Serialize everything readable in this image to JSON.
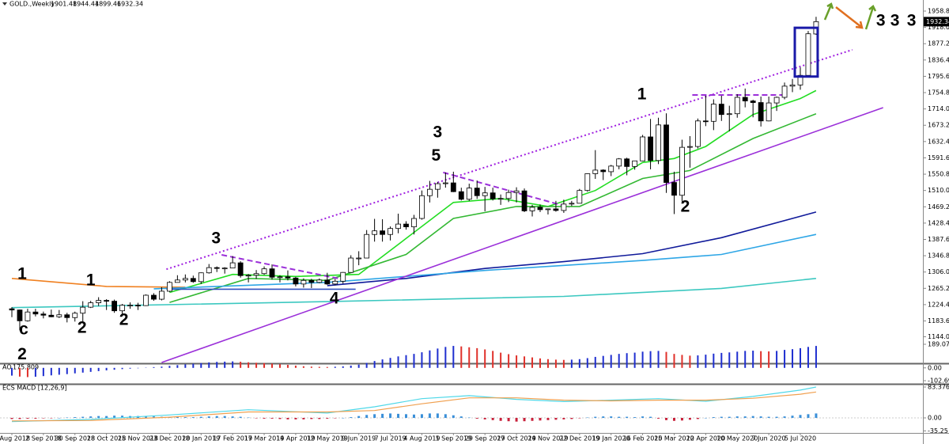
{
  "header": {
    "symbol": "GOLD.,Weekly"
  },
  "chart_data": [
    {
      "type": "candlestick",
      "categories": [
        "5 Aug 2018",
        null,
        null,
        null,
        "2 Sep 2018",
        null,
        null,
        null,
        "30 Sep 2018",
        null,
        null,
        null,
        "28 Oct 2018",
        null,
        null,
        null,
        "25 Nov 2018",
        null,
        null,
        null,
        "23 Dec 2018",
        null,
        null,
        null,
        "20 Jan 2019",
        null,
        null,
        null,
        "17 Feb 2019",
        null,
        null,
        null,
        "17 Mar 2019",
        null,
        null,
        null,
        "14 Apr 2019",
        null,
        null,
        null,
        "12 May 2019",
        null,
        null,
        null,
        "9 Jun 2019",
        null,
        null,
        null,
        "7 Jul 2019",
        null,
        null,
        null,
        "4 Aug 2019",
        null,
        null,
        null,
        "1 Sep 2019",
        null,
        null,
        null,
        "29 Sep 2019",
        null,
        null,
        null,
        "27 Oct 2019",
        null,
        null,
        null,
        "24 Nov 2019",
        null,
        null,
        null,
        "22 Dec 2019",
        null,
        null,
        null,
        "19 Jan 2020",
        null,
        null,
        null,
        "16 Feb 2020",
        null,
        null,
        null,
        "15 Mar 2020",
        null,
        null,
        null,
        "12 Apr 2020",
        null,
        null,
        null,
        "10 May 2020",
        null,
        null,
        null,
        "7 Jun 2020",
        null,
        null,
        null,
        "5 Jul 2020",
        null,
        null
      ],
      "open": [
        1214,
        1211,
        1184,
        1206,
        1201,
        1198,
        1194,
        1199,
        1192,
        1203,
        1218,
        1229,
        1235,
        1233,
        1209,
        1223,
        1223,
        1222,
        1248,
        1238,
        1258,
        1280,
        1286,
        1290,
        1282,
        1304,
        1317,
        1316,
        1316,
        1329,
        1297,
        1298,
        1302,
        1314,
        1293,
        1294,
        1291,
        1276,
        1285,
        1280,
        1286,
        1276,
        1283,
        1305,
        1341,
        1341,
        1400,
        1409,
        1400,
        1415,
        1426,
        1419,
        1440,
        1497,
        1513,
        1527,
        1529,
        1507,
        1488,
        1516,
        1497,
        1504,
        1489,
        1490,
        1505,
        1509,
        1459,
        1468,
        1462,
        1464,
        1460,
        1476,
        1478,
        1510,
        1552,
        1561,
        1557,
        1571,
        1589,
        1570,
        1584,
        1644,
        1585,
        1674,
        1530,
        1498,
        1618,
        1620,
        1684,
        1683,
        1726,
        1700,
        1702,
        1743,
        1734,
        1730,
        1684,
        1729,
        1743,
        1771,
        1774,
        1798,
        1901.48
      ],
      "high": [
        1218,
        1212,
        1214,
        1214,
        1207,
        1212,
        1211,
        1204,
        1207,
        1233,
        1234,
        1243,
        1238,
        1237,
        1226,
        1230,
        1229,
        1250,
        1253,
        1268,
        1283,
        1298,
        1300,
        1297,
        1305,
        1326,
        1320,
        1318,
        1346,
        1333,
        1301,
        1311,
        1320,
        1325,
        1298,
        1310,
        1294,
        1290,
        1289,
        1290,
        1304,
        1289,
        1306,
        1348,
        1358,
        1411,
        1439,
        1438,
        1420,
        1452,
        1433,
        1449,
        1510,
        1534,
        1531,
        1555,
        1557,
        1517,
        1527,
        1535,
        1519,
        1517,
        1500,
        1512,
        1518,
        1515,
        1474,
        1475,
        1465,
        1484,
        1487,
        1484,
        1514,
        1553,
        1611,
        1563,
        1574,
        1591,
        1592,
        1584,
        1649,
        1689,
        1692,
        1703,
        1557,
        1637,
        1646,
        1690,
        1747,
        1738,
        1747,
        1722,
        1751,
        1765,
        1737,
        1745,
        1745,
        1745,
        1780,
        1789,
        1818,
        1909,
        1944.44
      ],
      "low": [
        1193,
        1160,
        1182,
        1195,
        1190,
        1193,
        1191,
        1180,
        1182,
        1182,
        1216,
        1221,
        1211,
        1204,
        1196,
        1214,
        1211,
        1221,
        1234,
        1235,
        1256,
        1280,
        1280,
        1279,
        1276,
        1302,
        1306,
        1302,
        1316,
        1292,
        1280,
        1289,
        1299,
        1287,
        1280,
        1285,
        1270,
        1267,
        1266,
        1278,
        1274,
        1273,
        1277,
        1305,
        1323,
        1341,
        1382,
        1382,
        1385,
        1403,
        1412,
        1400,
        1437,
        1480,
        1492,
        1517,
        1506,
        1485,
        1484,
        1489,
        1458,
        1485,
        1474,
        1481,
        1480,
        1456,
        1445,
        1456,
        1450,
        1457,
        1454,
        1471,
        1478,
        1507,
        1539,
        1536,
        1546,
        1563,
        1548,
        1562,
        1584,
        1563,
        1576,
        1504,
        1451,
        1482,
        1567,
        1615,
        1671,
        1661,
        1684,
        1658,
        1692,
        1718,
        1693,
        1670,
        1683,
        1709,
        1738,
        1756,
        1762,
        1794,
        1899.46
      ],
      "close": [
        1211,
        1184,
        1206,
        1201,
        1198,
        1194,
        1199,
        1192,
        1203,
        1218,
        1229,
        1235,
        1233,
        1209,
        1223,
        1223,
        1222,
        1248,
        1238,
        1258,
        1280,
        1286,
        1290,
        1282,
        1304,
        1317,
        1316,
        1316,
        1329,
        1297,
        1298,
        1302,
        1314,
        1293,
        1294,
        1291,
        1276,
        1285,
        1280,
        1286,
        1276,
        1283,
        1305,
        1341,
        1341,
        1400,
        1409,
        1400,
        1415,
        1426,
        1419,
        1440,
        1497,
        1513,
        1527,
        1529,
        1507,
        1488,
        1516,
        1497,
        1504,
        1489,
        1490,
        1505,
        1509,
        1459,
        1468,
        1462,
        1464,
        1460,
        1476,
        1478,
        1510,
        1552,
        1561,
        1557,
        1571,
        1589,
        1570,
        1584,
        1644,
        1585,
        1674,
        1530,
        1498,
        1618,
        1620,
        1684,
        1683,
        1726,
        1700,
        1702,
        1743,
        1734,
        1730,
        1684,
        1729,
        1743,
        1771,
        1774,
        1798,
        1902,
        1932.34
      ],
      "up_color": "#ffffff",
      "down_color": "#000000",
      "ylim": [
        1079.7,
        1968.7
      ],
      "yticks": [
        {
          "value": 1958.8,
          "label": "1958.80"
        },
        {
          "value": 1918,
          "label": "1918.00"
        },
        {
          "value": 1877.2,
          "label": "1877.20"
        },
        {
          "value": 1836.4,
          "label": "1836.40"
        },
        {
          "value": 1795.6,
          "label": "1795.60"
        },
        {
          "value": 1754.8,
          "label": "1754.80"
        },
        {
          "value": 1714,
          "label": "1714.00"
        },
        {
          "value": 1673.2,
          "label": "1673.20"
        },
        {
          "value": 1632.4,
          "label": "1632.40"
        },
        {
          "value": 1591.6,
          "label": "1591.60"
        },
        {
          "value": 1550.8,
          "label": "1550.80"
        },
        {
          "value": 1510,
          "label": "1510.00"
        },
        {
          "value": 1469.2,
          "label": "1469.20"
        },
        {
          "value": 1428.4,
          "label": "1428.40"
        },
        {
          "value": 1387.6,
          "label": "1387.60"
        },
        {
          "value": 1346.8,
          "label": "1346.80"
        },
        {
          "value": 1306,
          "label": "1306.00"
        },
        {
          "value": 1265.2,
          "label": "1265.20"
        },
        {
          "value": 1224.4,
          "label": "1224.40"
        },
        {
          "value": 1183.6,
          "label": "1183.60"
        },
        {
          "value": 1144,
          "label": "1144.00"
        }
      ],
      "lines": [
        {
          "color": "#22dd22",
          "style": "solid",
          "x": [
            20,
            28,
            36,
            44,
            50,
            56,
            62,
            68,
            74,
            80,
            84,
            88,
            94,
            100,
            102
          ],
          "values": [
            1255,
            1300,
            1295,
            1300,
            1390,
            1480,
            1490,
            1470,
            1510,
            1580,
            1590,
            1620,
            1700,
            1740,
            1760
          ]
        },
        {
          "color": "#33b833",
          "style": "solid",
          "x": [
            20,
            30,
            40,
            50,
            56,
            64,
            72,
            80,
            86,
            94,
            102
          ],
          "values": [
            1230,
            1290,
            1285,
            1350,
            1440,
            1470,
            1470,
            1540,
            1560,
            1640,
            1702
          ]
        },
        {
          "color": "#f08020",
          "style": "solid",
          "x": [
            0,
            12,
            22
          ],
          "values": [
            1290,
            1270,
            1268
          ]
        },
        {
          "color": "#101a9a",
          "style": "solid",
          "x": [
            40,
            50,
            60,
            70,
            80,
            90,
            102
          ],
          "values": [
            1272,
            1290,
            1315,
            1332,
            1352,
            1392,
            1456
          ]
        },
        {
          "color": "#2ea6e6",
          "style": "solid",
          "x": [
            18,
            40,
            60,
            80,
            90,
            102
          ],
          "values": [
            1264,
            1280,
            1310,
            1335,
            1350,
            1400
          ]
        },
        {
          "color": "#3cc8c0",
          "style": "solid",
          "x": [
            0,
            40,
            70,
            90,
            102
          ],
          "values": [
            1217,
            1232,
            1245,
            1265,
            1290
          ]
        },
        {
          "color": "#3050c0",
          "style": "solid",
          "x": [
            19.6,
            43.6
          ],
          "values": [
            1263,
            1263
          ]
        },
        {
          "color": "#9b30d9",
          "style": "solid",
          "x": [
            19,
            110.5
          ],
          "values": [
            1079.7,
            1717.2
          ]
        },
        {
          "color": "#a020e0",
          "style": "dotted",
          "x": [
            19.6,
            106.6
          ],
          "values": [
            1313,
            1862
          ]
        },
        {
          "color": "#9b30d9",
          "style": "dashed",
          "x": [
            26.6,
            41.6
          ],
          "values": [
            1349,
            1289
          ]
        },
        {
          "color": "#9b30d9",
          "style": "dashed",
          "x": [
            54.7,
            70.7
          ],
          "values": [
            1555,
            1468
          ]
        },
        {
          "color": "#9b30d9",
          "style": "dashed",
          "x": [
            86.3,
            97.8
          ],
          "values": [
            1749,
            1749
          ]
        }
      ],
      "box": {
        "color": "#1a1aa8",
        "x": [
          99.3,
          102.2
        ],
        "values": [
          1917,
          1795
        ]
      },
      "annotations": [
        {
          "text": "1",
          "x": 1.3,
          "y": 1299.5,
          "color": "#8b1fd6"
        },
        {
          "text": "c",
          "x": 1.5,
          "y": 1161,
          "color": "#a89ccf"
        },
        {
          "text": "2",
          "x": 8.9,
          "y": 1165,
          "color": "#8b1fd6"
        },
        {
          "text": "1",
          "x": 10,
          "y": 1284,
          "color": "#a89ccf"
        },
        {
          "text": "2",
          "x": 14.2,
          "y": 1185,
          "color": "#a89ccf"
        },
        {
          "text": "3",
          "x": 25.9,
          "y": 1389,
          "color": "#a89ccf"
        },
        {
          "text": "4",
          "x": 40.9,
          "y": 1238,
          "color": "#a89ccf"
        },
        {
          "text": "3",
          "x": 54,
          "y": 1654,
          "color": "#8b1fd6"
        },
        {
          "text": "5",
          "x": 53.8,
          "y": 1596,
          "color": "#a89ccf"
        },
        {
          "text": "1",
          "x": 79.9,
          "y": 1749,
          "color": "#a89ccf"
        },
        {
          "text": "2",
          "x": 85.4,
          "y": 1468,
          "color": "#a89ccf"
        },
        {
          "text": "2",
          "x": 1.3,
          "y": 1099,
          "color": "#f25ad9"
        },
        {
          "text": "3",
          "x": 110.2,
          "y": 1933,
          "color": "#a89ccf"
        },
        {
          "text": "3",
          "x": 112,
          "y": 1933,
          "color": "#8b1fd6"
        },
        {
          "text": "3",
          "x": 114.1,
          "y": 1933,
          "color": "#f25ad9"
        }
      ]
    },
    {
      "type": "bar",
      "title": "AO",
      "values": [
        -62,
        -70,
        -74,
        -71,
        -66,
        -60,
        -55,
        -50,
        -44,
        -38,
        -32,
        -26,
        -20,
        -15,
        -10,
        -6,
        -3,
        2,
        6,
        10,
        16,
        22,
        28,
        33,
        38,
        44,
        48,
        50,
        52,
        49,
        45,
        41,
        38,
        34,
        30,
        24,
        18,
        13,
        10,
        8,
        7,
        9,
        12,
        18,
        26,
        40,
        55,
        68,
        80,
        92,
        102,
        112,
        125,
        140,
        155,
        168,
        176,
        172,
        165,
        158,
        148,
        136,
        122,
        110,
        100,
        92,
        84,
        76,
        70,
        66,
        64,
        66,
        70,
        78,
        88,
        96,
        104,
        112,
        118,
        122,
        130,
        134,
        136,
        128,
        112,
        104,
        98,
        100,
        106,
        114,
        120,
        124,
        130,
        136,
        138,
        134,
        132,
        136,
        144,
        150,
        158,
        168,
        175.809
      ],
      "up_color": "#1f2fd0",
      "down_color": "#e0302a",
      "ylim": [
        -102.691,
        189.071
      ],
      "yticks": [
        189.071,
        {
          "value": 0,
          "label": "0.00"
        },
        -102.691
      ]
    },
    {
      "type": "macd",
      "title": "ECS MACD [12,26,9]",
      "histogram": [
        -3,
        -3,
        -2,
        -2,
        -1,
        -1,
        0,
        1,
        2,
        3,
        4,
        5,
        5,
        6,
        6,
        5,
        5,
        4,
        4,
        3,
        3,
        3,
        2,
        2,
        3,
        4,
        5,
        5,
        4,
        3,
        1,
        -1,
        -2,
        -2,
        -3,
        -4,
        -4,
        -4,
        -3,
        -3,
        -2,
        -1,
        0,
        2,
        5,
        8,
        10,
        11,
        12,
        11,
        10,
        9,
        10,
        12,
        12,
        10,
        7,
        4,
        1,
        -2,
        -4,
        -6,
        -8,
        -9,
        -10,
        -9,
        -8,
        -7,
        -6,
        -5,
        -4,
        -3,
        -1,
        1,
        3,
        4,
        4,
        3,
        3,
        2,
        4,
        3,
        -2,
        -6,
        -8,
        -7,
        -5,
        -3,
        0,
        2,
        3,
        3,
        4,
        4,
        5,
        4,
        3,
        3,
        4,
        6,
        8,
        10,
        12
      ],
      "up_color": "#3a8fd8",
      "down_color": "#c8203a",
      "series": [
        {
          "color": "#4fd8e8",
          "x": [
            0,
            10,
            20,
            30,
            40,
            46,
            52,
            58,
            64,
            70,
            76,
            82,
            88,
            94,
            100,
            102
          ],
          "values": [
            -10,
            -4,
            8,
            22,
            13,
            30,
            52,
            60,
            50,
            44,
            48,
            52,
            45,
            58,
            75,
            83.3769
          ]
        },
        {
          "color": "#f0a050",
          "x": [
            0,
            10,
            20,
            30,
            40,
            46,
            52,
            58,
            64,
            70,
            76,
            82,
            88,
            94,
            100,
            102
          ],
          "values": [
            -8,
            -7,
            2,
            16,
            16,
            20,
            38,
            54,
            54,
            48,
            46,
            48,
            48,
            53,
            64,
            70
          ]
        }
      ],
      "ylim": [
        -35.25,
        83.3769
      ],
      "yticks": [
        83.3769,
        {
          "value": 0,
          "label": "0.00"
        },
        -35.25
      ]
    }
  ]
}
